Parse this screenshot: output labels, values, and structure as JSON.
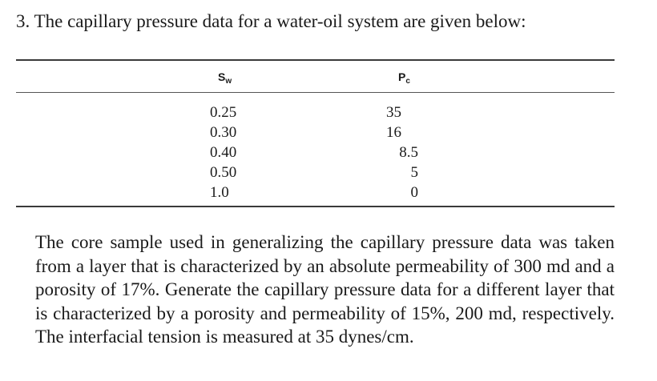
{
  "question": {
    "text": "3. The capillary pressure data for a water-oil system are given below:"
  },
  "table": {
    "headers": {
      "sw": {
        "main": "S",
        "sub": "w"
      },
      "pc": {
        "main": "P",
        "sub": "c"
      }
    },
    "rows": [
      {
        "sw": "0.25",
        "pc": "35"
      },
      {
        "sw": "0.30",
        "pc": "16"
      },
      {
        "sw": "0.40",
        "pc": "8.5"
      },
      {
        "sw": "0.50",
        "pc": "5"
      },
      {
        "sw": "1.0",
        "pc": "0"
      }
    ]
  },
  "paragraph": {
    "text": "The core sample used in generalizing the capillary pressure data was taken from a layer that is characterized by an absolute permeability of 300 md and a porosity of 17%. Generate the capillary pressure data for a different layer that is characterized by a porosity and permeability of 15%, 200 md, respectively. The interfacial tension is measured at 35 dynes/cm."
  }
}
